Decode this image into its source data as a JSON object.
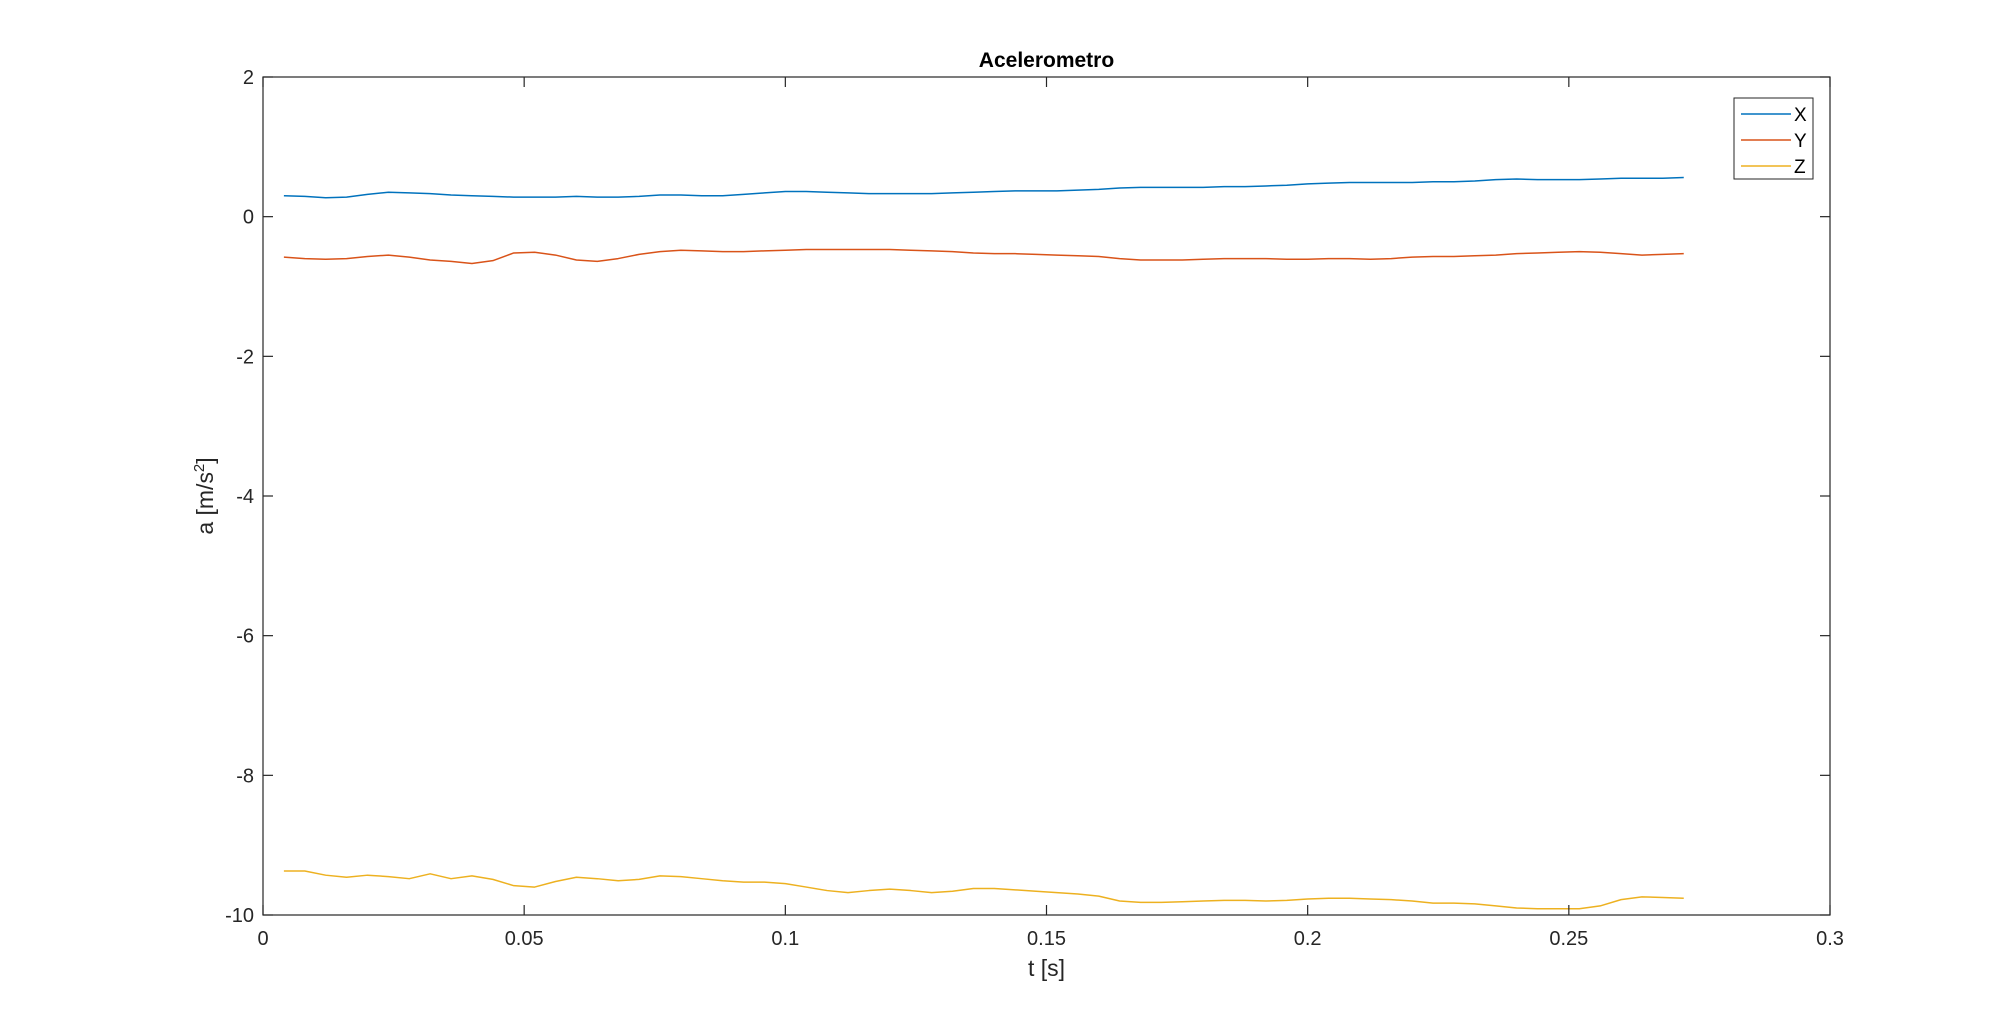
{
  "chart_data": {
    "type": "line",
    "title": "Acelerometro",
    "xlabel": "t [s]",
    "ylabel": {
      "base": "a [m/s",
      "sup": "2",
      "suffix": "]"
    },
    "xlim": [
      0,
      0.3
    ],
    "ylim": [
      -10,
      2
    ],
    "xticks": [
      0,
      0.05,
      0.1,
      0.15,
      0.2,
      0.25,
      0.3
    ],
    "xtick_labels": [
      "0",
      "0.05",
      "0.1",
      "0.15",
      "0.2",
      "0.25",
      "0.3"
    ],
    "yticks": [
      2,
      0,
      -2,
      -4,
      -6,
      -8,
      -10
    ],
    "ytick_labels": [
      "2",
      "0",
      "-2",
      "-4",
      "-6",
      "-8",
      "-10"
    ],
    "grid": false,
    "legend_position": "top-right",
    "x": [
      0.004,
      0.008,
      0.012,
      0.016,
      0.02,
      0.024,
      0.028,
      0.032,
      0.036,
      0.04,
      0.044,
      0.048,
      0.052,
      0.056,
      0.06,
      0.064,
      0.068,
      0.072,
      0.076,
      0.08,
      0.084,
      0.088,
      0.092,
      0.096,
      0.1,
      0.104,
      0.108,
      0.112,
      0.116,
      0.12,
      0.124,
      0.128,
      0.132,
      0.136,
      0.14,
      0.144,
      0.148,
      0.152,
      0.156,
      0.16,
      0.164,
      0.168,
      0.172,
      0.176,
      0.18,
      0.184,
      0.188,
      0.192,
      0.196,
      0.2,
      0.204,
      0.208,
      0.212,
      0.216,
      0.22,
      0.224,
      0.228,
      0.232,
      0.236,
      0.24,
      0.244,
      0.248,
      0.252,
      0.256,
      0.26,
      0.264,
      0.268,
      0.272
    ],
    "series": [
      {
        "name": "X",
        "color": "#0072BD",
        "values": [
          0.3,
          0.29,
          0.27,
          0.28,
          0.32,
          0.35,
          0.34,
          0.33,
          0.31,
          0.3,
          0.29,
          0.28,
          0.28,
          0.28,
          0.29,
          0.28,
          0.28,
          0.29,
          0.31,
          0.31,
          0.3,
          0.3,
          0.32,
          0.34,
          0.36,
          0.36,
          0.35,
          0.34,
          0.33,
          0.33,
          0.33,
          0.33,
          0.34,
          0.35,
          0.36,
          0.37,
          0.37,
          0.37,
          0.38,
          0.39,
          0.41,
          0.42,
          0.42,
          0.42,
          0.42,
          0.43,
          0.43,
          0.44,
          0.45,
          0.47,
          0.48,
          0.49,
          0.49,
          0.49,
          0.49,
          0.5,
          0.5,
          0.51,
          0.53,
          0.54,
          0.53,
          0.53,
          0.53,
          0.54,
          0.55,
          0.55,
          0.55,
          0.56
        ]
      },
      {
        "name": "Y",
        "color": "#D95319",
        "values": [
          -0.58,
          -0.6,
          -0.61,
          -0.6,
          -0.57,
          -0.55,
          -0.58,
          -0.62,
          -0.64,
          -0.67,
          -0.63,
          -0.52,
          -0.51,
          -0.55,
          -0.62,
          -0.64,
          -0.6,
          -0.54,
          -0.5,
          -0.48,
          -0.49,
          -0.5,
          -0.5,
          -0.49,
          -0.48,
          -0.47,
          -0.47,
          -0.47,
          -0.47,
          -0.47,
          -0.48,
          -0.49,
          -0.5,
          -0.52,
          -0.53,
          -0.53,
          -0.54,
          -0.55,
          -0.56,
          -0.57,
          -0.6,
          -0.62,
          -0.62,
          -0.62,
          -0.61,
          -0.6,
          -0.6,
          -0.6,
          -0.61,
          -0.61,
          -0.6,
          -0.6,
          -0.61,
          -0.6,
          -0.58,
          -0.57,
          -0.57,
          -0.56,
          -0.55,
          -0.53,
          -0.52,
          -0.51,
          -0.5,
          -0.51,
          -0.53,
          -0.55,
          -0.54,
          -0.53
        ]
      },
      {
        "name": "Z",
        "color": "#EDB120",
        "values": [
          -9.37,
          -9.37,
          -9.43,
          -9.46,
          -9.43,
          -9.45,
          -9.48,
          -9.41,
          -9.48,
          -9.44,
          -9.49,
          -9.58,
          -9.6,
          -9.52,
          -9.46,
          -9.48,
          -9.51,
          -9.49,
          -9.44,
          -9.45,
          -9.48,
          -9.51,
          -9.53,
          -9.53,
          -9.55,
          -9.6,
          -9.65,
          -9.68,
          -9.65,
          -9.63,
          -9.65,
          -9.68,
          -9.66,
          -9.62,
          -9.62,
          -9.64,
          -9.66,
          -9.68,
          -9.7,
          -9.73,
          -9.8,
          -9.82,
          -9.82,
          -9.81,
          -9.8,
          -9.79,
          -9.79,
          -9.8,
          -9.79,
          -9.77,
          -9.76,
          -9.76,
          -9.77,
          -9.78,
          -9.8,
          -9.83,
          -9.83,
          -9.84,
          -9.87,
          -9.9,
          -9.91,
          -9.91,
          -9.91,
          -9.87,
          -9.78,
          -9.74,
          -9.75,
          -9.76
        ]
      }
    ]
  }
}
